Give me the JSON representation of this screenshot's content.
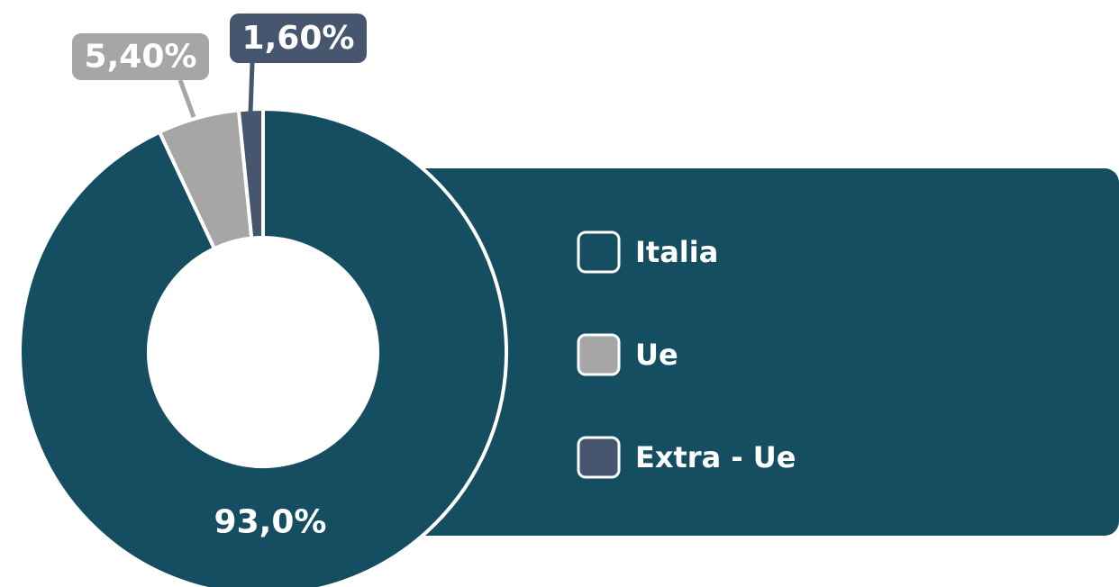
{
  "chart_data": {
    "type": "pie",
    "donut": true,
    "categories": [
      "Italia",
      "Ue",
      "Extra - Ue"
    ],
    "values": [
      93.0,
      5.4,
      1.6
    ],
    "value_labels": [
      "93,0%",
      "5,40%",
      "1,60%"
    ],
    "colors": [
      "#154e60",
      "#a7a6a7",
      "#46566e"
    ],
    "legend": "right"
  }
}
